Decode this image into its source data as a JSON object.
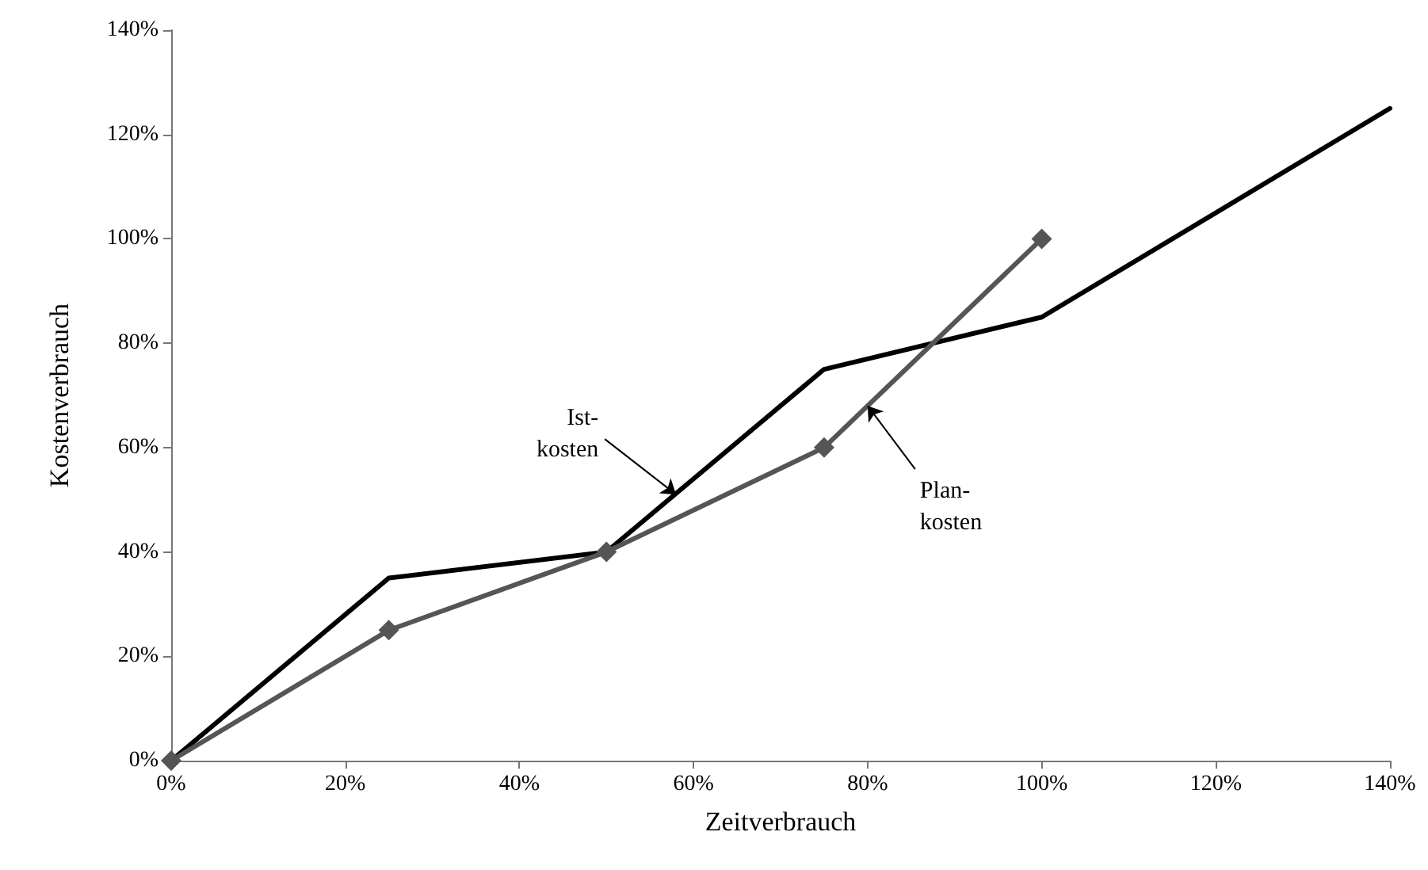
{
  "chart_data": {
    "type": "line",
    "xlabel": "Zeitverbrauch",
    "ylabel": "Kostenverbrauch",
    "series": [
      {
        "color": "#000000",
        "marker": "none",
        "x": [
          0,
          25,
          50,
          75,
          100,
          140
        ],
        "values": [
          0,
          35,
          40,
          75,
          85,
          125
        ]
      },
      {
        "color": "#555555",
        "marker": "diamond",
        "x": [
          0,
          25,
          50,
          75,
          100
        ],
        "values": [
          0,
          25,
          40,
          60,
          100
        ]
      }
    ],
    "annotations": [
      {
        "text": "Ist- kosten",
        "x": 58,
        "y": 51
      },
      {
        "text": "Plan- kosten",
        "x": 80,
        "y": 68
      }
    ],
    "xlim": [
      0,
      140
    ],
    "ylim": [
      0,
      140
    ],
    "xticks": [
      {
        "value": 0,
        "label": "0%"
      },
      {
        "value": 20,
        "label": "20%"
      },
      {
        "value": 40,
        "label": "40%"
      },
      {
        "value": 60,
        "label": "60%"
      },
      {
        "value": 80,
        "label": "80%"
      },
      {
        "value": 100,
        "label": "100%"
      },
      {
        "value": 120,
        "label": "120%"
      },
      {
        "value": 140,
        "label": "140%"
      }
    ],
    "yticks": [
      {
        "value": 0,
        "label": "0%"
      },
      {
        "value": 20,
        "label": "20%"
      },
      {
        "value": 40,
        "label": "40%"
      },
      {
        "value": 60,
        "label": "60%"
      },
      {
        "value": 80,
        "label": "80%"
      },
      {
        "value": 100,
        "label": "100%"
      },
      {
        "value": 120,
        "label": "120%"
      },
      {
        "value": 140,
        "label": "140%"
      }
    ],
    "grid": false,
    "line_style": "solid"
  }
}
